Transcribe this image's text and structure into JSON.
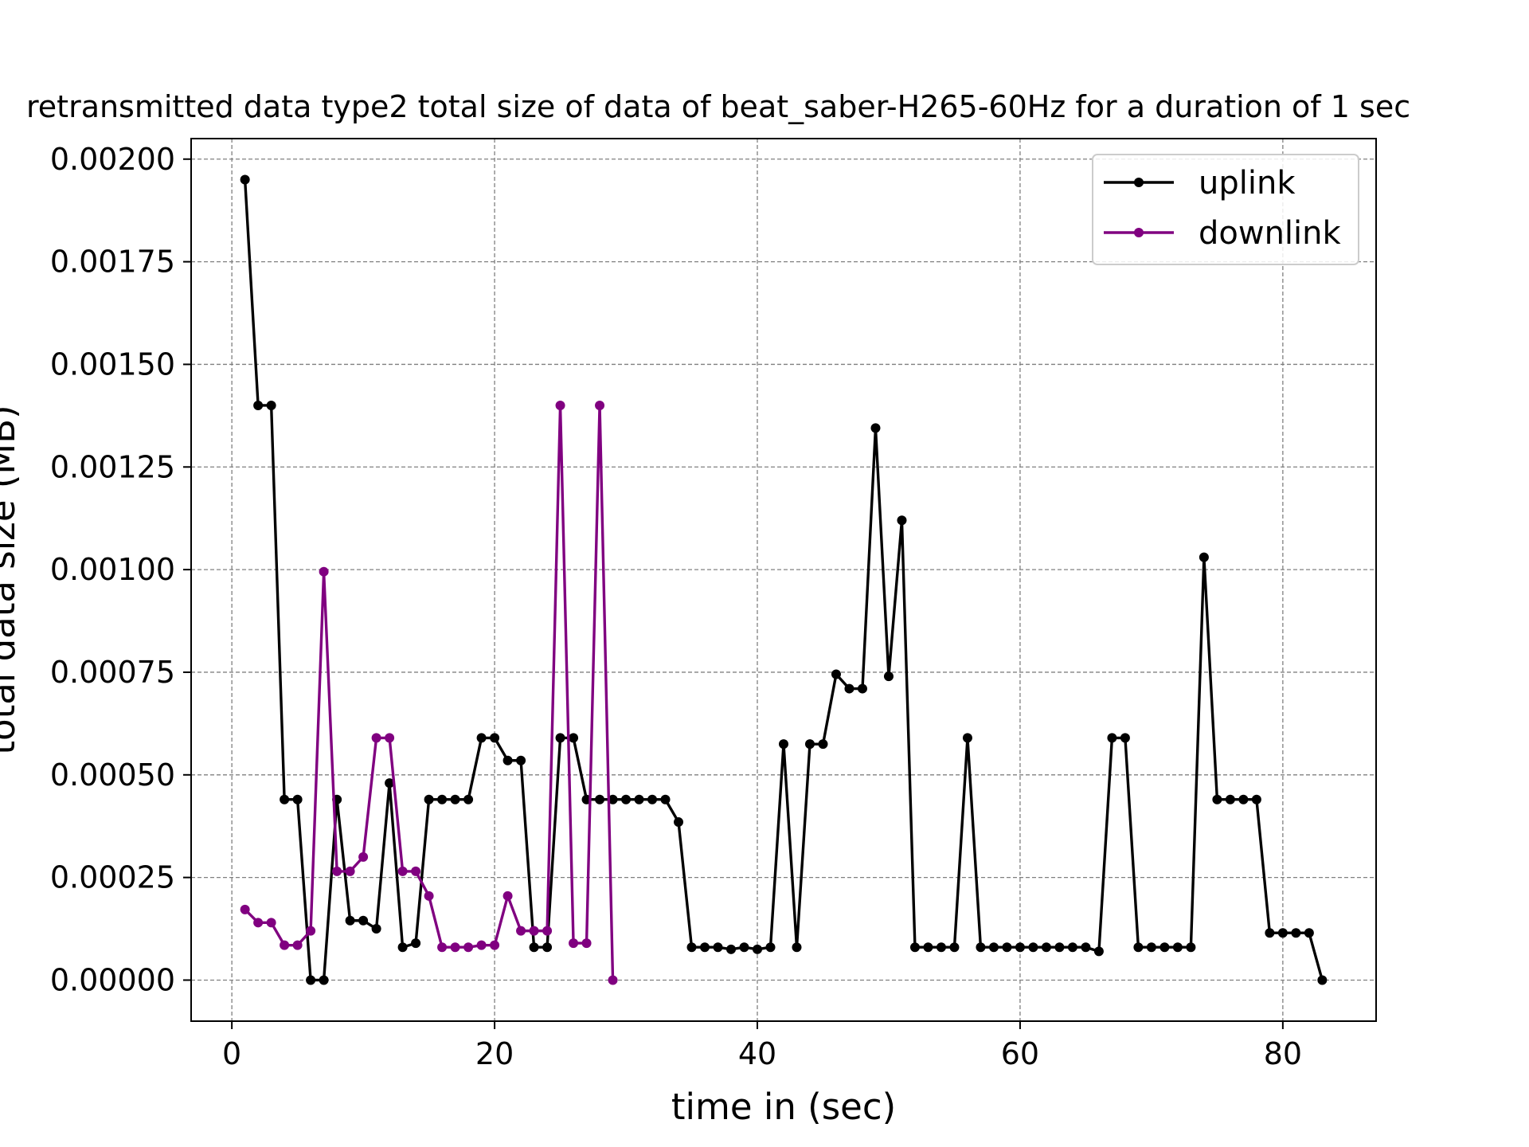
{
  "chart_data": {
    "type": "line",
    "title": "retransmitted data type2 total size of data of beat_saber-H265-60Hz for a duration of 1 sec",
    "xlabel": "time in (sec)",
    "ylabel": "total data size (MB)",
    "xlim": [
      -3.1,
      87.1
    ],
    "ylim": [
      -0.0001,
      0.00205
    ],
    "x_ticks": [
      0,
      20,
      40,
      60,
      80
    ],
    "x_tick_labels": [
      "0",
      "20",
      "40",
      "60",
      "80"
    ],
    "y_ticks": [
      0,
      0.00025,
      0.0005,
      0.00075,
      0.001,
      0.00125,
      0.0015,
      0.00175,
      0.002
    ],
    "y_tick_labels": [
      "0.00000",
      "0.00025",
      "0.00050",
      "0.00075",
      "0.00100",
      "0.00125",
      "0.00150",
      "0.00175",
      "0.00200"
    ],
    "grid": true,
    "legend_position": "top-right",
    "series": [
      {
        "name": "uplink",
        "color": "#000000",
        "x": [
          1,
          2,
          3,
          4,
          5,
          6,
          7,
          8,
          9,
          10,
          11,
          12,
          13,
          14,
          15,
          16,
          17,
          18,
          19,
          20,
          21,
          22,
          23,
          24,
          25,
          26,
          27,
          28,
          29,
          30,
          31,
          32,
          33,
          34,
          35,
          36,
          37,
          38,
          39,
          40,
          41,
          42,
          43,
          44,
          45,
          46,
          47,
          48,
          49,
          50,
          51,
          52,
          53,
          54,
          55,
          56,
          57,
          58,
          59,
          60,
          61,
          62,
          63,
          64,
          65,
          66,
          67,
          68,
          69,
          70,
          71,
          72,
          73,
          74,
          75,
          76,
          77,
          78,
          79,
          80,
          81,
          82,
          83
        ],
        "values": [
          0.00195,
          0.0014,
          0.0014,
          0.00044,
          0.00044,
          0.0,
          0.0,
          0.00044,
          0.000145,
          0.000145,
          0.000125,
          0.00048,
          8e-05,
          9e-05,
          0.00044,
          0.00044,
          0.00044,
          0.00044,
          0.00059,
          0.00059,
          0.000535,
          0.000535,
          8e-05,
          8e-05,
          0.00059,
          0.00059,
          0.00044,
          0.00044,
          0.00044,
          0.00044,
          0.00044,
          0.00044,
          0.00044,
          0.000385,
          8e-05,
          8e-05,
          8e-05,
          7.5e-05,
          8e-05,
          7.5e-05,
          8e-05,
          0.000575,
          8e-05,
          0.000575,
          0.000575,
          0.000745,
          0.00071,
          0.00071,
          0.001345,
          0.00074,
          0.00112,
          8e-05,
          8e-05,
          8e-05,
          8e-05,
          0.00059,
          8e-05,
          8e-05,
          8e-05,
          8e-05,
          8e-05,
          8e-05,
          8e-05,
          8e-05,
          8e-05,
          7e-05,
          0.00059,
          0.00059,
          8e-05,
          8e-05,
          8e-05,
          8e-05,
          8e-05,
          0.00103,
          0.00044,
          0.00044,
          0.00044,
          0.00044,
          0.000115,
          0.000115,
          0.000115,
          0.000115,
          0.0
        ]
      },
      {
        "name": "downlink",
        "color": "#800080",
        "x": [
          1,
          2,
          3,
          4,
          5,
          6,
          7,
          8,
          9,
          10,
          11,
          12,
          13,
          14,
          15,
          16,
          17,
          18,
          19,
          20,
          21,
          22,
          23,
          24,
          25,
          26,
          27,
          28,
          29
        ],
        "values": [
          0.000172,
          0.00014,
          0.00014,
          8.5e-05,
          8.5e-05,
          0.00012,
          0.000995,
          0.000265,
          0.000265,
          0.0003,
          0.00059,
          0.00059,
          0.000265,
          0.000265,
          0.000205,
          8e-05,
          8e-05,
          8e-05,
          8.5e-05,
          8.5e-05,
          0.000205,
          0.00012,
          0.00012,
          0.00012,
          0.0014,
          9e-05,
          9e-05,
          0.0014,
          0.0
        ]
      }
    ]
  }
}
